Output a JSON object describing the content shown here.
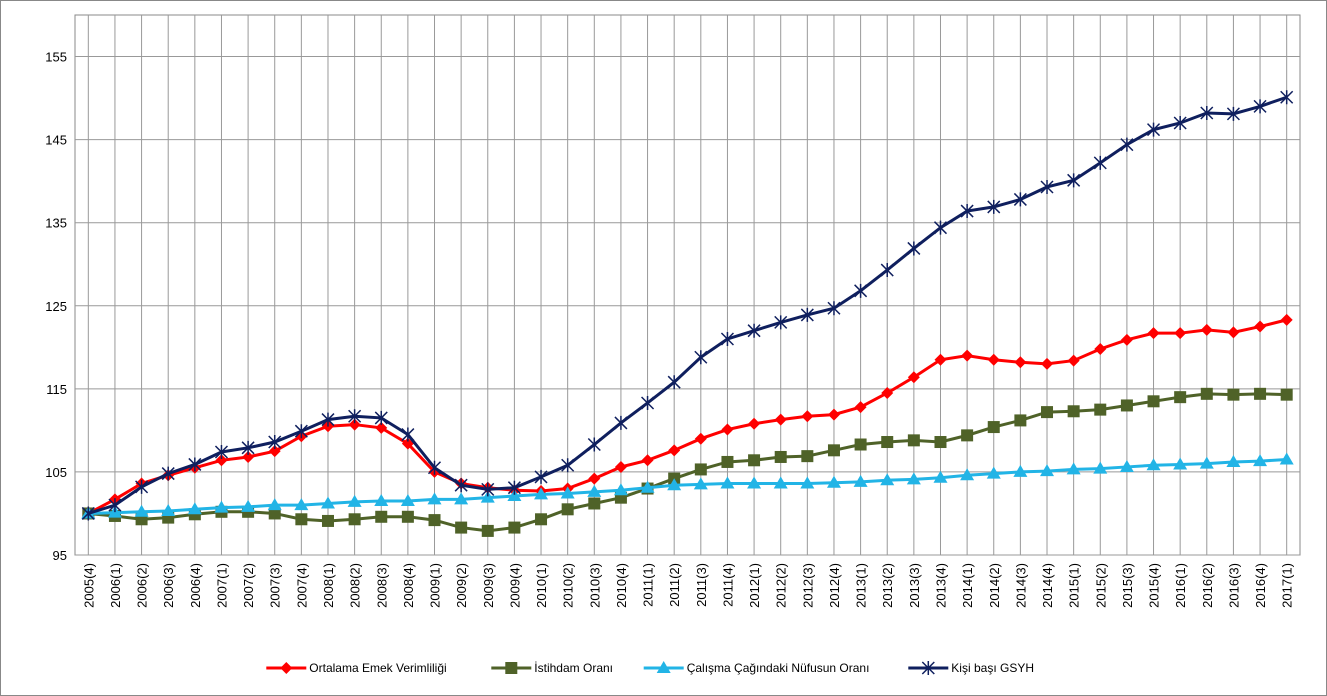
{
  "chart_data": {
    "type": "line",
    "categories": [
      "2005(4)",
      "2006(1)",
      "2006(2)",
      "2006(3)",
      "2006(4)",
      "2007(1)",
      "2007(2)",
      "2007(3)",
      "2007(4)",
      "2008(1)",
      "2008(2)",
      "2008(3)",
      "2008(4)",
      "2009(1)",
      "2009(2)",
      "2009(3)",
      "2009(4)",
      "2010(1)",
      "2010(2)",
      "2010(3)",
      "2010(4)",
      "2011(1)",
      "2011(2)",
      "2011(3)",
      "2011(4)",
      "2012(1)",
      "2012(2)",
      "2012(3)",
      "2012(4)",
      "2013(1)",
      "2013(2)",
      "2013(3)",
      "2013(4)",
      "2014(1)",
      "2014(2)",
      "2014(3)",
      "2014(4)",
      "2015(1)",
      "2015(2)",
      "2015(3)",
      "2015(4)",
      "2016(1)",
      "2016(2)",
      "2016(3)",
      "2016(4)",
      "2017(1)"
    ],
    "series": [
      {
        "name": "Ortalama Emek Verimliliği",
        "color": "#ff0000",
        "marker": "diamond",
        "values": [
          100,
          101.7,
          103.6,
          104.6,
          105.5,
          106.4,
          106.8,
          107.5,
          109.3,
          110.5,
          110.7,
          110.3,
          108.4,
          105,
          103.6,
          103.1,
          102.8,
          102.7,
          103,
          104.2,
          105.6,
          106.4,
          107.6,
          109,
          110.1,
          110.8,
          111.3,
          111.7,
          111.9,
          112.8,
          114.5,
          116.4,
          118.5,
          119,
          118.5,
          118.2,
          118,
          118.4,
          119.8,
          120.9,
          121.7,
          121.7,
          122.1,
          121.8,
          122.5,
          123.3
        ]
      },
      {
        "name": "İstihdam Oranı",
        "color": "#4f6228",
        "marker": "square",
        "values": [
          100,
          99.7,
          99.3,
          99.5,
          99.9,
          100.2,
          100.2,
          100,
          99.3,
          99.1,
          99.3,
          99.6,
          99.6,
          99.2,
          98.3,
          97.9,
          98.3,
          99.3,
          100.5,
          101.2,
          101.9,
          103,
          104.2,
          105.3,
          106.2,
          106.4,
          106.8,
          106.9,
          107.6,
          108.3,
          108.6,
          108.8,
          108.6,
          109.4,
          110.4,
          111.2,
          112.2,
          112.3,
          112.5,
          113,
          113.5,
          114,
          114.4,
          114.3,
          114.4,
          114.3
        ]
      },
      {
        "name": "Çalışma Çağındaki Nüfusun Oranı",
        "color": "#22b4e6",
        "marker": "triangle",
        "values": [
          100,
          100.1,
          100.2,
          100.3,
          100.5,
          100.7,
          100.8,
          101,
          101,
          101.2,
          101.4,
          101.5,
          101.5,
          101.7,
          101.7,
          101.9,
          102.1,
          102.3,
          102.4,
          102.6,
          102.8,
          103.1,
          103.4,
          103.5,
          103.6,
          103.6,
          103.6,
          103.6,
          103.7,
          103.8,
          104,
          104.1,
          104.3,
          104.6,
          104.8,
          105,
          105.1,
          105.3,
          105.4,
          105.6,
          105.8,
          105.9,
          106,
          106.2,
          106.3,
          106.5
        ]
      },
      {
        "name": "Kişi başı GSYH",
        "color": "#0f1f5e",
        "marker": "star",
        "values": [
          100,
          101,
          103.2,
          104.8,
          105.9,
          107.4,
          107.9,
          108.6,
          109.9,
          111.3,
          111.7,
          111.5,
          109.5,
          105.5,
          103.4,
          102.9,
          103.1,
          104.4,
          105.8,
          108.3,
          110.9,
          113.3,
          115.8,
          118.8,
          121,
          122,
          123,
          123.9,
          124.7,
          126.8,
          129.3,
          131.9,
          134.4,
          136.4,
          136.9,
          137.8,
          139.3,
          140.1,
          142.2,
          144.4,
          146.2,
          147,
          148.2,
          148.1,
          149,
          150.1
        ]
      }
    ],
    "ylim": [
      95,
      160
    ],
    "yticks": [
      95,
      105,
      115,
      125,
      135,
      145,
      155
    ],
    "grid": true,
    "legend": "bottom"
  }
}
